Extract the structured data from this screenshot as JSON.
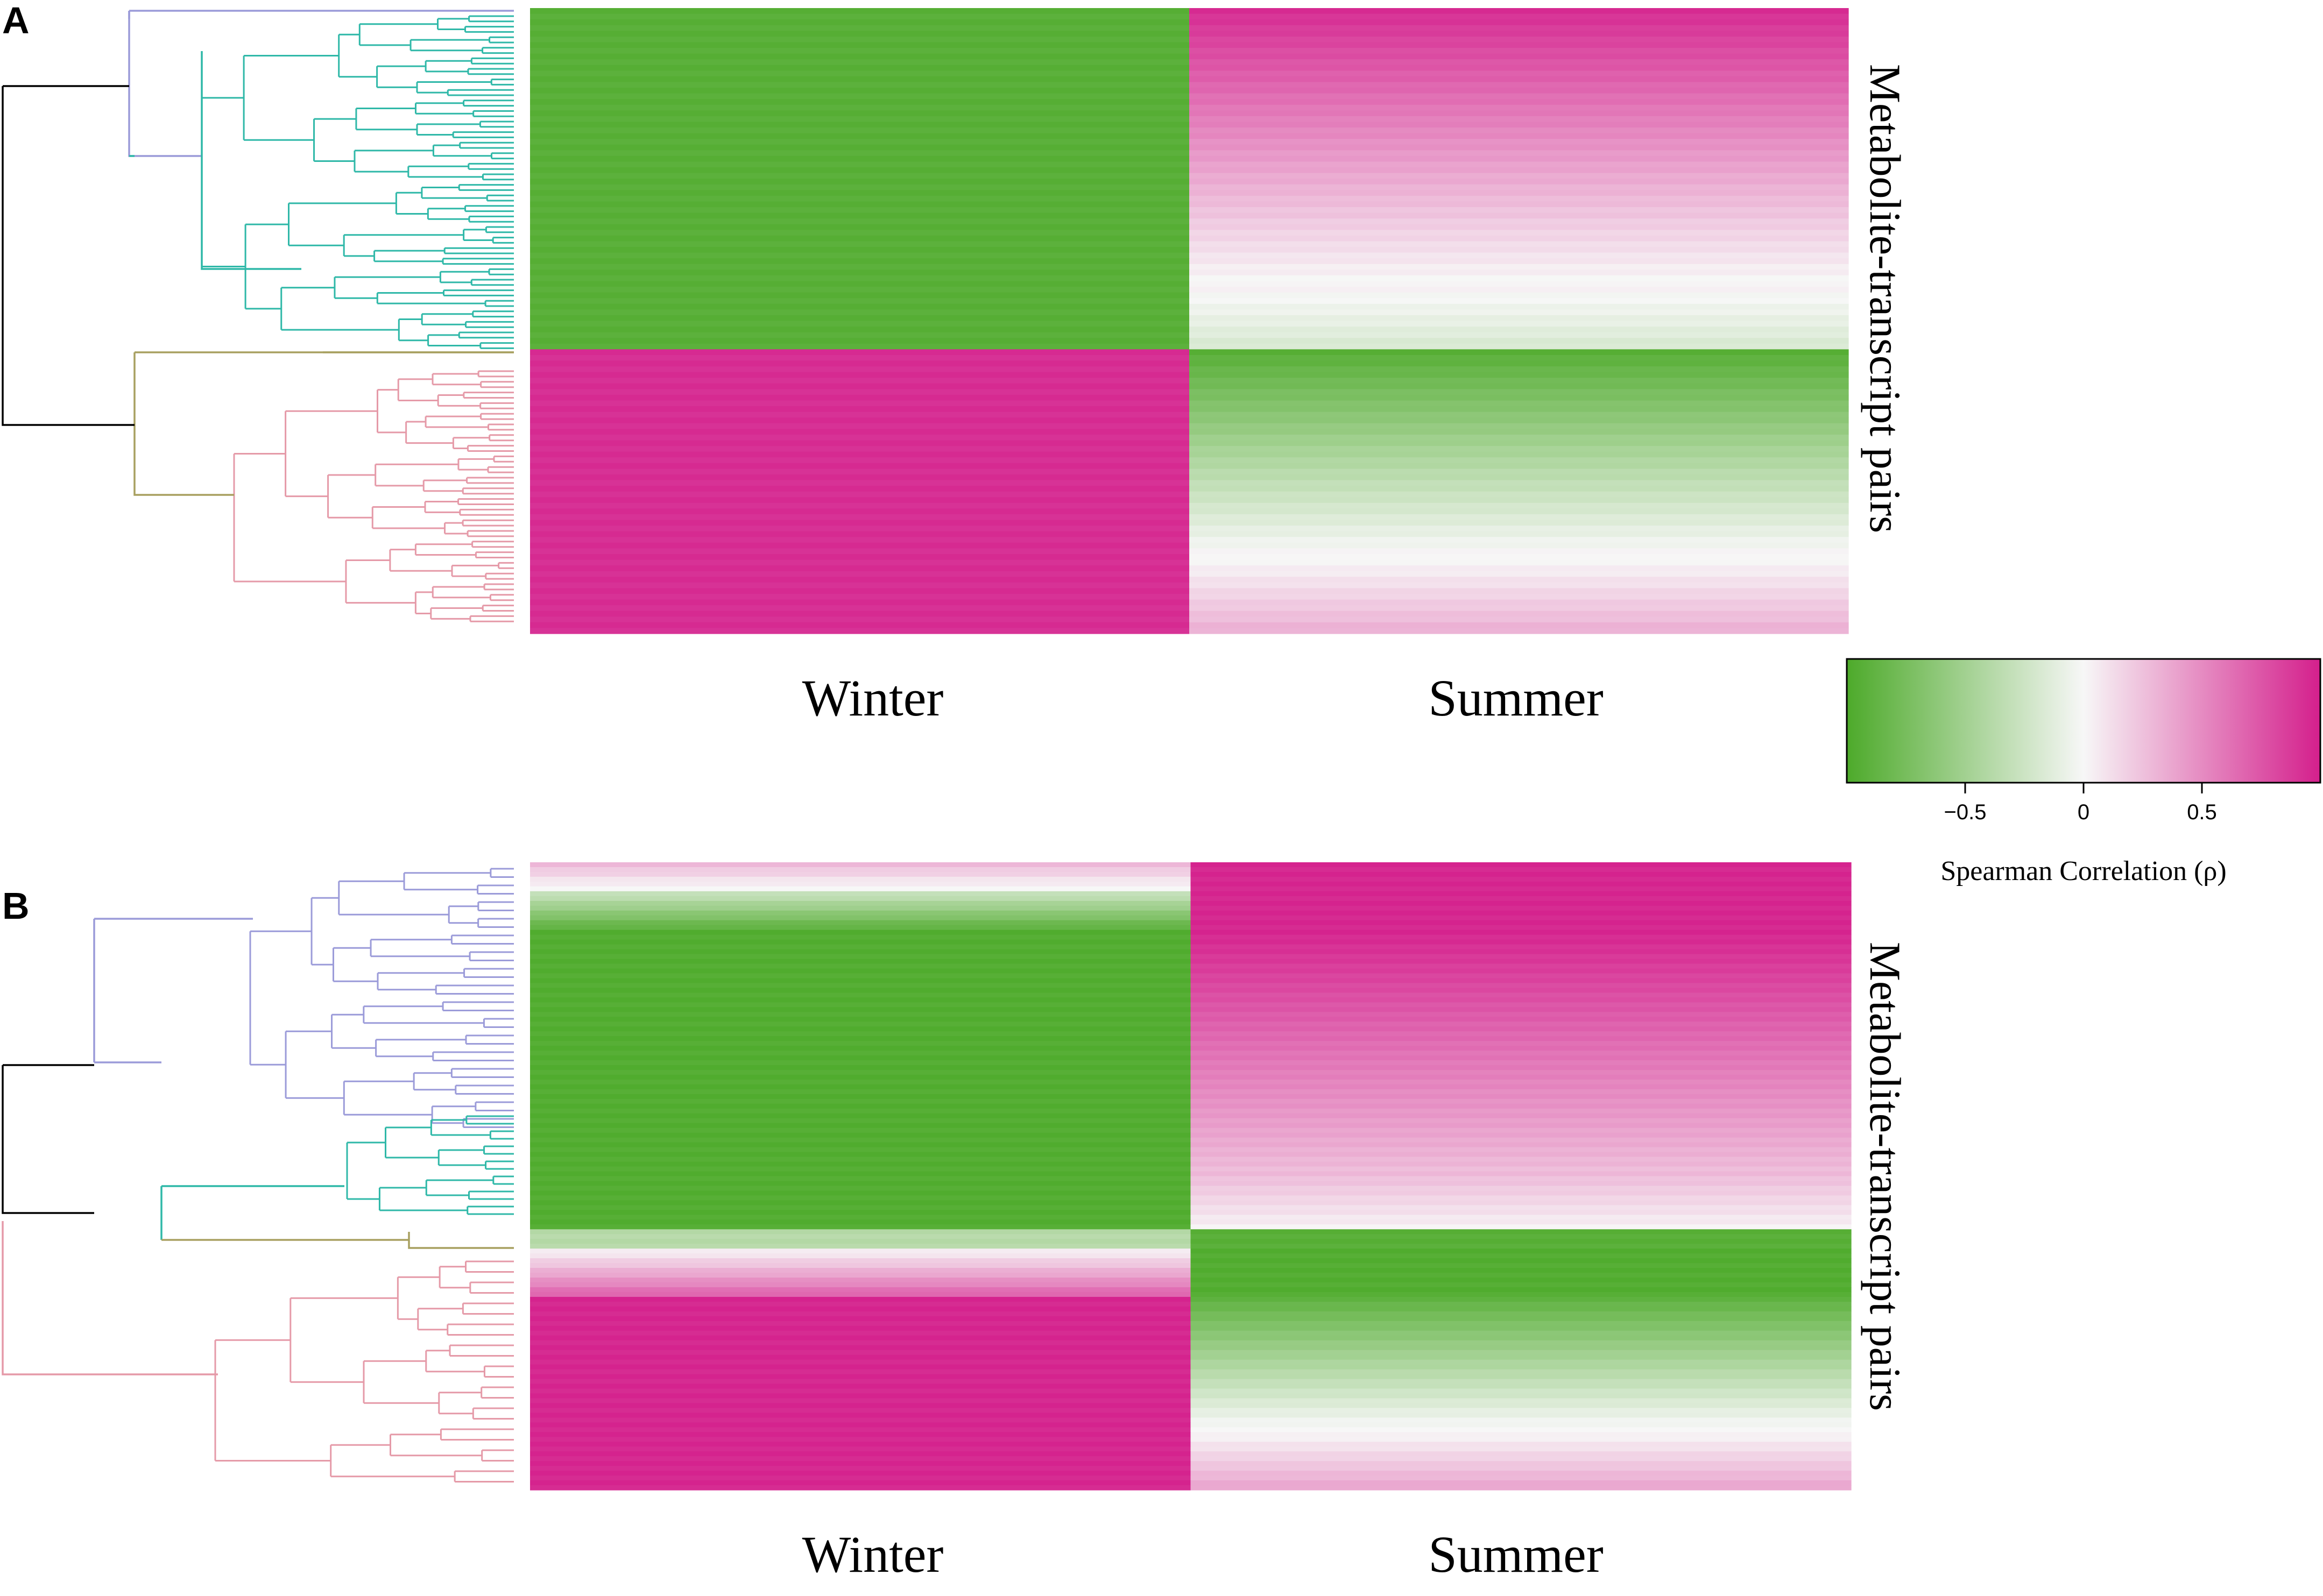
{
  "panels": [
    {
      "label": "A",
      "column_labels": [
        "Winter",
        "Summer"
      ],
      "row_axis_label": "Metabolite-transcript pairs"
    },
    {
      "label": "B",
      "column_labels": [
        "Winter",
        "Summer"
      ],
      "row_axis_label": "Metabolite-transcript pairs"
    }
  ],
  "legend": {
    "title": "Spearman Correlation (ρ)",
    "ticks": [
      "−0.5",
      "0",
      "0.5"
    ],
    "tick_values": [
      -0.5,
      0,
      0.5
    ],
    "range": [
      -1,
      1
    ],
    "low_color": "#4daa2a",
    "mid_color": "#f7f7f7",
    "high_color": "#d41f8c"
  },
  "dendrogram_colors": {
    "root": "#000000",
    "cluster_purple": "#9b9bd9",
    "cluster_teal": "#2fb8a8",
    "cluster_olive": "#a8a060",
    "cluster_pink": "#e59aa8"
  },
  "chart_data": [
    {
      "type": "heatmap",
      "panel": "A",
      "columns": [
        "Winter",
        "Summer"
      ],
      "ylabel": "Metabolite-transcript pairs",
      "value_range": [
        -1,
        1
      ],
      "row_groups": [
        {
          "rows": 60,
          "winter": [
            -0.95,
            -0.95
          ],
          "summer": [
            0.95,
            -0.2
          ]
        },
        {
          "rows": 50,
          "winter": [
            0.95,
            0.95
          ],
          "summer": [
            -0.95,
            0.35
          ]
        }
      ]
    },
    {
      "type": "heatmap",
      "panel": "B",
      "columns": [
        "Winter",
        "Summer"
      ],
      "ylabel": "Metabolite-transcript pairs",
      "value_range": [
        -1,
        1
      ],
      "row_groups": [
        {
          "rows": 6,
          "winter": [
            0.3,
            0.0
          ],
          "summer": [
            0.98,
            0.98
          ]
        },
        {
          "rows": 8,
          "winter": [
            -0.3,
            -0.9
          ],
          "summer": [
            0.98,
            0.98
          ]
        },
        {
          "rows": 50,
          "winter": [
            -0.98,
            -0.98
          ],
          "summer": [
            0.98,
            0.3
          ]
        },
        {
          "rows": 12,
          "winter": [
            -0.98,
            -0.98
          ],
          "summer": [
            0.3,
            0.05
          ]
        },
        {
          "rows": 4,
          "winter": [
            -0.4,
            -0.4
          ],
          "summer": [
            -0.95,
            -0.95
          ]
        },
        {
          "rows": 10,
          "winter": [
            0.05,
            0.7
          ],
          "summer": [
            -0.98,
            -0.98
          ]
        },
        {
          "rows": 40,
          "winter": [
            0.98,
            0.98
          ],
          "summer": [
            -0.9,
            0.4
          ]
        }
      ]
    }
  ]
}
